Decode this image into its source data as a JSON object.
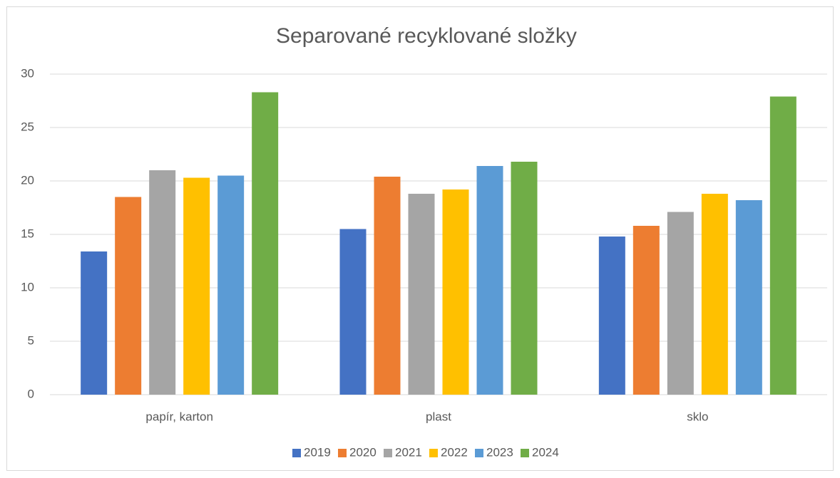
{
  "chart_data": {
    "type": "bar",
    "title": "Separované recyklované složky",
    "categories": [
      "papír, karton",
      "plast",
      "sklo"
    ],
    "series": [
      {
        "name": "2019",
        "color": "#4472c4",
        "values": [
          13.4,
          15.5,
          14.8
        ]
      },
      {
        "name": "2020",
        "color": "#ed7d31",
        "values": [
          18.5,
          20.4,
          15.8
        ]
      },
      {
        "name": "2021",
        "color": "#a5a5a5",
        "values": [
          21.0,
          18.8,
          17.1
        ]
      },
      {
        "name": "2022",
        "color": "#ffc000",
        "values": [
          20.3,
          19.2,
          18.8
        ]
      },
      {
        "name": "2023",
        "color": "#5b9bd5",
        "values": [
          20.5,
          21.4,
          18.2
        ]
      },
      {
        "name": "2024",
        "color": "#70ad47",
        "values": [
          28.3,
          21.8,
          27.9
        ]
      }
    ],
    "ylim": [
      0,
      30
    ],
    "yticks": [
      0,
      5,
      10,
      15,
      20,
      25,
      30
    ],
    "grid": true,
    "legend": "bottom"
  }
}
